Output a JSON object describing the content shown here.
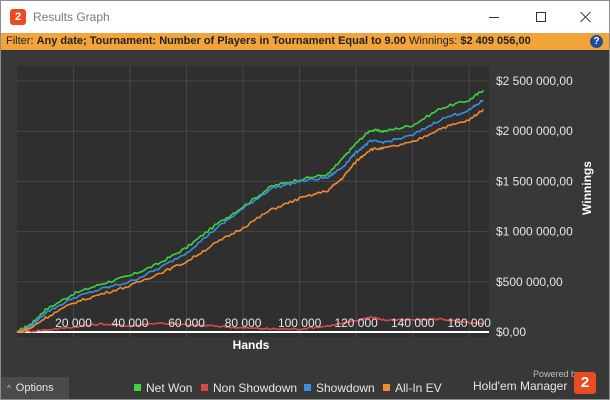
{
  "app": {
    "title": "Results Graph",
    "logo_text": "2"
  },
  "filter": {
    "label": "Filter:",
    "value": "Any date; Tournament: Number of Players in Tournament Equal to 9.00",
    "winnings_label": "Winnings:",
    "winnings_value": "$2 409 056,00",
    "help_glyph": "?"
  },
  "chart_data": {
    "type": "line",
    "xlabel": "Hands",
    "ylabel": "Winnings",
    "xlim": [
      0,
      167000
    ],
    "ylim": [
      -50000,
      2650000
    ],
    "x_ticks": [
      20000,
      40000,
      60000,
      80000,
      100000,
      120000,
      140000,
      160000
    ],
    "x_tick_labels": [
      "20 000",
      "40 000",
      "60 000",
      "80 000",
      "100 000",
      "120 000",
      "140 000",
      "160 000"
    ],
    "y_ticks": [
      0,
      500000,
      1000000,
      1500000,
      2000000,
      2500000
    ],
    "y_tick_labels": [
      "$0,00",
      "$500 000,00",
      "$1 000 000,00",
      "$1 500 000,00",
      "$2 000 000,00",
      "$2 500 000,00"
    ],
    "grid": true,
    "legend": "bottom",
    "series": [
      {
        "name": "Net Won",
        "color": "#3fd13f",
        "x": [
          0,
          5000,
          10000,
          20000,
          30000,
          40000,
          50000,
          60000,
          70000,
          80000,
          90000,
          100000,
          110000,
          115000,
          120000,
          125000,
          130000,
          140000,
          150000,
          160000,
          165000
        ],
        "y": [
          0,
          80000,
          220000,
          380000,
          480000,
          560000,
          680000,
          840000,
          1060000,
          1250000,
          1450000,
          1520000,
          1570000,
          1720000,
          1880000,
          2010000,
          2000000,
          2060000,
          2230000,
          2310000,
          2409056
        ]
      },
      {
        "name": "Non Showdown",
        "color": "#d84a4a",
        "x": [
          0,
          10000,
          20000,
          30000,
          40000,
          50000,
          60000,
          70000,
          80000,
          90000,
          100000,
          110000,
          120000,
          125000,
          130000,
          140000,
          150000,
          160000,
          165000
        ],
        "y": [
          0,
          20000,
          50000,
          80000,
          60000,
          90000,
          70000,
          60000,
          40000,
          30000,
          30000,
          60000,
          110000,
          150000,
          120000,
          120000,
          130000,
          90000,
          80000
        ]
      },
      {
        "name": "Showdown",
        "color": "#3a8fd9",
        "x": [
          0,
          5000,
          10000,
          20000,
          30000,
          40000,
          50000,
          60000,
          70000,
          80000,
          90000,
          100000,
          110000,
          115000,
          120000,
          125000,
          130000,
          140000,
          150000,
          160000,
          165000
        ],
        "y": [
          0,
          60000,
          190000,
          340000,
          430000,
          500000,
          630000,
          790000,
          1020000,
          1230000,
          1430000,
          1500000,
          1540000,
          1640000,
          1790000,
          1900000,
          1890000,
          1960000,
          2120000,
          2210000,
          2310000
        ]
      },
      {
        "name": "All-In EV",
        "color": "#ef8a30",
        "x": [
          0,
          5000,
          10000,
          20000,
          30000,
          40000,
          50000,
          60000,
          70000,
          80000,
          90000,
          100000,
          110000,
          115000,
          120000,
          125000,
          130000,
          140000,
          150000,
          160000,
          165000
        ],
        "y": [
          0,
          40000,
          140000,
          290000,
          380000,
          460000,
          580000,
          700000,
          880000,
          1040000,
          1220000,
          1330000,
          1410000,
          1530000,
          1700000,
          1820000,
          1830000,
          1890000,
          2030000,
          2110000,
          2220000
        ]
      }
    ]
  },
  "options": {
    "label": "Options",
    "caret": "^"
  },
  "brand": {
    "powered_by": "Powered by",
    "name": "Hold'em Manager",
    "logo_text": "2"
  }
}
